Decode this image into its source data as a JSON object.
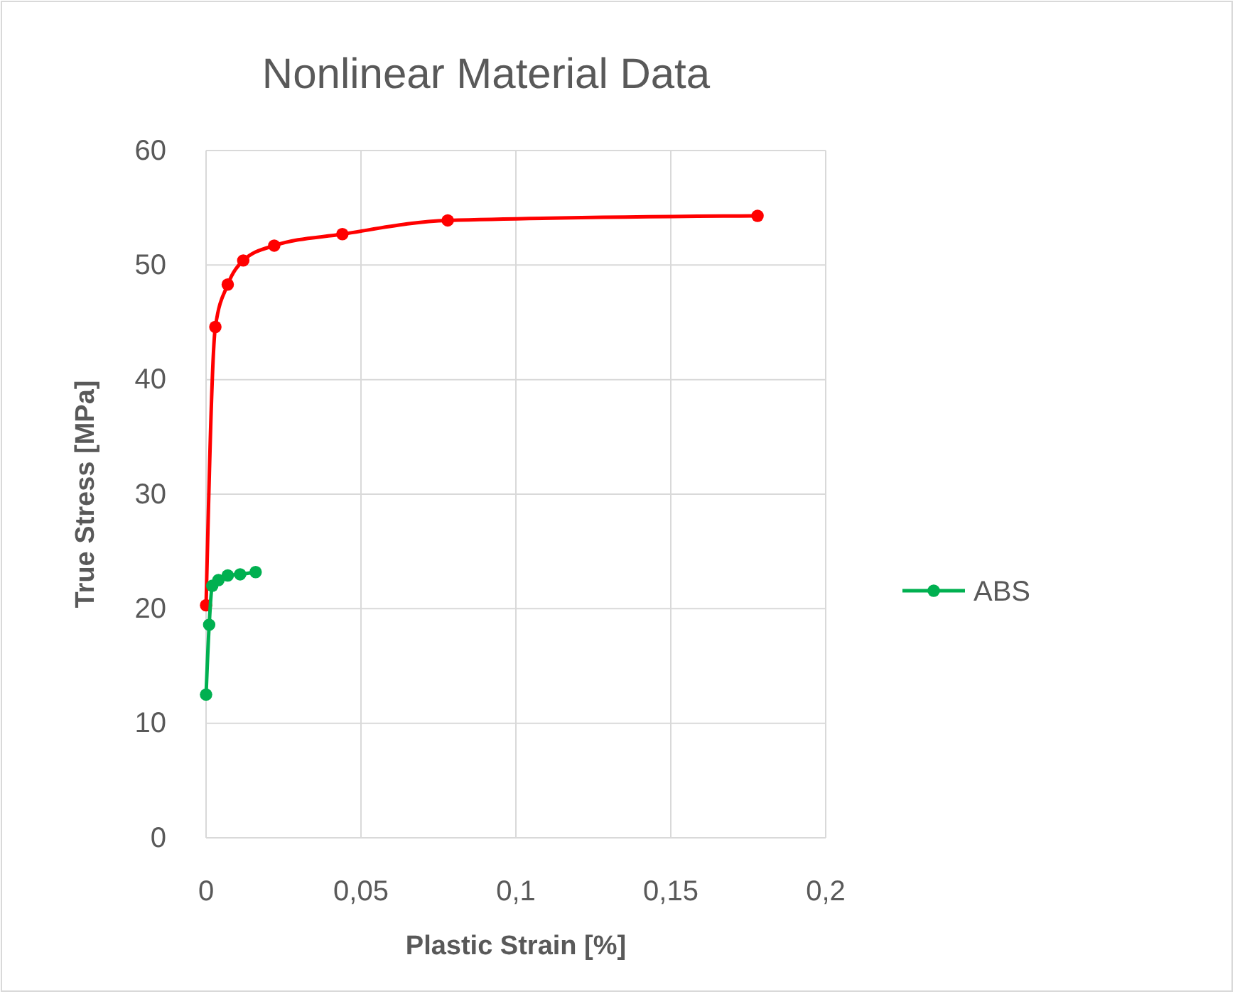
{
  "chart_data": {
    "type": "line",
    "title": "Nonlinear Material Data",
    "xlabel": "Plastic Strain [%]",
    "ylabel": "True Stress [MPa]",
    "xlim": [
      0,
      0.2
    ],
    "xticks": [
      0,
      {
        "value": 0.05,
        "label": "0,05"
      },
      {
        "value": 0.1,
        "label": "0,1"
      },
      {
        "value": 0.15,
        "label": "0,15"
      },
      {
        "value": 0.2,
        "label": "0,2"
      }
    ],
    "ylim": [
      0,
      60
    ],
    "yticks": [
      0,
      10,
      20,
      30,
      40,
      50,
      60
    ],
    "grid": true,
    "legend": "right",
    "marker": "circle",
    "line_style": "solid",
    "series": [
      {
        "color": "#ff0000",
        "x": [
          0,
          0.003,
          0.007,
          0.012,
          0.022,
          0.044,
          0.078,
          0.178
        ],
        "values": [
          20.3,
          44.6,
          48.3,
          50.4,
          51.7,
          52.7,
          53.9,
          54.3
        ]
      },
      {
        "name": "ABS",
        "color": "#00b050",
        "x": [
          0,
          0.001,
          0.002,
          0.004,
          0.007,
          0.011,
          0.016
        ],
        "values": [
          12.5,
          18.6,
          22,
          22.5,
          22.9,
          23,
          23.2
        ]
      }
    ]
  }
}
